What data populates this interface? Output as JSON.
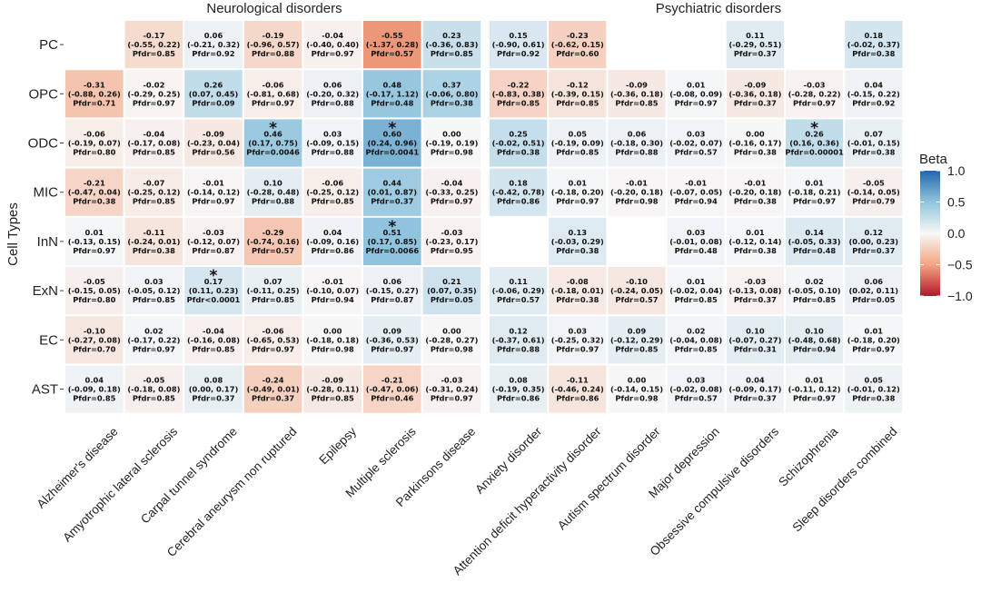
{
  "chart_data": {
    "type": "heatmap",
    "ylabel": "Cell Types",
    "rows": [
      "PC",
      "OPC",
      "ODC",
      "MIC",
      "InN",
      "ExN",
      "EC",
      "AST"
    ],
    "legend": {
      "title": "Beta",
      "ticks": [
        "1.0",
        "0.5",
        "0.0",
        "−0.5",
        "−1.0"
      ],
      "tick_values": [
        1.0,
        0.5,
        0.0,
        -0.5,
        -1.0
      ],
      "range": [
        -1.0,
        1.0
      ]
    },
    "panels": [
      {
        "title": "Neurological  disorders",
        "columns": [
          "Alzheimer's disease",
          "Amyotrophic lateral sclerosis",
          "Carpal tunnel syndrome",
          "Cerebral aneurysm non ruptured",
          "Epilepsy",
          "Multiple sclerosis",
          "Parkinsons disease"
        ],
        "cells": [
          [
            null,
            {
              "beta": -0.17,
              "b": "-0.17",
              "ci": "(-0.55, 0.22)",
              "p": "Pfdr=0.85"
            },
            {
              "beta": 0.06,
              "b": "0.06",
              "ci": "(-0.21, 0.32)",
              "p": "Pfdr=0.92"
            },
            {
              "beta": -0.19,
              "b": "-0.19",
              "ci": "(-0.96, 0.57)",
              "p": "Pfdr=0.88"
            },
            {
              "beta": -0.04,
              "b": "-0.04",
              "ci": "(-0.40, 0.40)",
              "p": "Pfdr=0.97"
            },
            {
              "beta": -0.55,
              "b": "-0.55",
              "ci": "(-1.37, 0.28)",
              "p": "Pfdr=0.57"
            },
            {
              "beta": 0.23,
              "b": "0.23",
              "ci": "(-0.36, 0.83)",
              "p": "Pfdr=0.85"
            }
          ],
          [
            {
              "beta": -0.31,
              "b": "-0.31",
              "ci": "(-0.88, 0.26)",
              "p": "Pfdr=0.71"
            },
            {
              "beta": -0.02,
              "b": "-0.02",
              "ci": "(-0.29, 0.25)",
              "p": "Pfdr=0.97"
            },
            {
              "beta": 0.26,
              "b": "0.26",
              "ci": "(0.07, 0.45)",
              "p": "Pfdr=0.09"
            },
            {
              "beta": -0.06,
              "b": "-0.06",
              "ci": "(-0.81, 0.68)",
              "p": "Pfdr=0.97"
            },
            {
              "beta": 0.06,
              "b": "0.06",
              "ci": "(-0.20, 0.32)",
              "p": "Pfdr=0.88"
            },
            {
              "beta": 0.48,
              "b": "0.48",
              "ci": "(-0.17, 1.12)",
              "p": "Pfdr=0.48"
            },
            {
              "beta": 0.37,
              "b": "0.37",
              "ci": "(-0.06, 0.80)",
              "p": "Pfdr=0.38"
            }
          ],
          [
            {
              "beta": -0.06,
              "b": "-0.06",
              "ci": "(-0.19, 0.07)",
              "p": "Pfdr=0.80"
            },
            {
              "beta": -0.04,
              "b": "-0.04",
              "ci": "(-0.17, 0.08)",
              "p": "Pfdr=0.85"
            },
            {
              "beta": -0.09,
              "b": "-0.09",
              "ci": "(-0.23, 0.04)",
              "p": "Pfdr=0.56"
            },
            {
              "beta": 0.46,
              "b": "0.46",
              "ci": "(0.17, 0.75)",
              "p": "Pfdr=0.0046",
              "sig": true
            },
            {
              "beta": 0.03,
              "b": "0.03",
              "ci": "(-0.09, 0.15)",
              "p": "Pfdr=0.88"
            },
            {
              "beta": 0.6,
              "b": "0.60",
              "ci": "(0.24, 0.96)",
              "p": "Pfdr=0.0041",
              "sig": true
            },
            {
              "beta": 0.0,
              "b": "0.00",
              "ci": "(-0.19, 0.19)",
              "p": "Pfdr=0.98"
            }
          ],
          [
            {
              "beta": -0.21,
              "b": "-0.21",
              "ci": "(-0.47, 0.04)",
              "p": "Pfdr=0.38"
            },
            {
              "beta": -0.07,
              "b": "-0.07",
              "ci": "(-0.25, 0.12)",
              "p": "Pfdr=0.85"
            },
            {
              "beta": -0.01,
              "b": "-0.01",
              "ci": "(-0.14, 0.12)",
              "p": "Pfdr=0.97"
            },
            {
              "beta": 0.1,
              "b": "0.10",
              "ci": "(-0.28, 0.48)",
              "p": "Pfdr=0.88"
            },
            {
              "beta": -0.06,
              "b": "-0.06",
              "ci": "(-0.25, 0.12)",
              "p": "Pfdr=0.85"
            },
            {
              "beta": 0.44,
              "b": "0.44",
              "ci": "(0.01, 0.87)",
              "p": "Pfdr=0.37"
            },
            {
              "beta": -0.04,
              "b": "-0.04",
              "ci": "(-0.33, 0.25)",
              "p": "Pfdr=0.97"
            }
          ],
          [
            {
              "beta": 0.01,
              "b": "0.01",
              "ci": "(-0.13, 0.15)",
              "p": "Pfdr=0.97"
            },
            {
              "beta": -0.11,
              "b": "-0.11",
              "ci": "(-0.24, 0.01)",
              "p": "Pfdr=0.38"
            },
            {
              "beta": -0.03,
              "b": "-0.03",
              "ci": "(-0.12, 0.07)",
              "p": "Pfdr=0.87"
            },
            {
              "beta": -0.29,
              "b": "-0.29",
              "ci": "(-0.74, 0.16)",
              "p": "Pfdr=0.57"
            },
            {
              "beta": 0.04,
              "b": "0.04",
              "ci": "(-0.09, 0.16)",
              "p": "Pfdr=0.86"
            },
            {
              "beta": 0.51,
              "b": "0.51",
              "ci": "(0.17, 0.85)",
              "p": "Pfdr=0.0066",
              "sig": true
            },
            {
              "beta": -0.03,
              "b": "-0.03",
              "ci": "(-0.23, 0.17)",
              "p": "Pfdr=0.95"
            }
          ],
          [
            {
              "beta": -0.05,
              "b": "-0.05",
              "ci": "(-0.15, 0.05)",
              "p": "Pfdr=0.80"
            },
            {
              "beta": 0.03,
              "b": "0.03",
              "ci": "(-0.05, 0.12)",
              "p": "Pfdr=0.85"
            },
            {
              "beta": 0.17,
              "b": "0.17",
              "ci": "(0.11, 0.23)",
              "p": "Pfdr<0.0001",
              "sig": true
            },
            {
              "beta": 0.07,
              "b": "0.07",
              "ci": "(-0.11, 0.25)",
              "p": "Pfdr=0.85"
            },
            {
              "beta": -0.01,
              "b": "-0.01",
              "ci": "(-0.10, 0.07)",
              "p": "Pfdr=0.94"
            },
            {
              "beta": 0.06,
              "b": "0.06",
              "ci": "(-0.15, 0.27)",
              "p": "Pfdr=0.87"
            },
            {
              "beta": 0.21,
              "b": "0.21",
              "ci": "(0.07, 0.35)",
              "p": "Pfdr=0.05"
            }
          ],
          [
            {
              "beta": -0.1,
              "b": "-0.10",
              "ci": "(-0.27, 0.08)",
              "p": "Pfdr=0.70"
            },
            {
              "beta": 0.02,
              "b": "0.02",
              "ci": "(-0.17, 0.22)",
              "p": "Pfdr=0.97"
            },
            {
              "beta": -0.04,
              "b": "-0.04",
              "ci": "(-0.16, 0.08)",
              "p": "Pfdr=0.85"
            },
            {
              "beta": -0.06,
              "b": "-0.06",
              "ci": "(-0.65, 0.53)",
              "p": "Pfdr=0.97"
            },
            {
              "beta": 0.0,
              "b": "0.00",
              "ci": "(-0.18, 0.18)",
              "p": "Pfdr=0.98"
            },
            {
              "beta": 0.09,
              "b": "0.09",
              "ci": "(-0.36, 0.53)",
              "p": "Pfdr=0.97"
            },
            {
              "beta": 0.0,
              "b": "0.00",
              "ci": "(-0.28, 0.27)",
              "p": "Pfdr=0.98"
            }
          ],
          [
            {
              "beta": 0.04,
              "b": "0.04",
              "ci": "(-0.09, 0.18)",
              "p": "Pfdr=0.85"
            },
            {
              "beta": -0.05,
              "b": "-0.05",
              "ci": "(-0.18, 0.08)",
              "p": "Pfdr=0.85"
            },
            {
              "beta": 0.08,
              "b": "0.08",
              "ci": "(0.00, 0.17)",
              "p": "Pfdr=0.37"
            },
            {
              "beta": -0.24,
              "b": "-0.24",
              "ci": "(-0.49, 0.01)",
              "p": "Pfdr=0.37"
            },
            {
              "beta": -0.09,
              "b": "-0.09",
              "ci": "(-0.28, 0.11)",
              "p": "Pfdr=0.85"
            },
            {
              "beta": -0.21,
              "b": "-0.21",
              "ci": "(-0.47, 0.06)",
              "p": "Pfdr=0.46"
            },
            {
              "beta": -0.03,
              "b": "-0.03",
              "ci": "(-0.31, 0.24)",
              "p": "Pfdr=0.97"
            }
          ]
        ]
      },
      {
        "title": "Psychiatric disorders",
        "columns": [
          "Anxiety disorder",
          "Attention deficit hyperactivity disorder",
          "Autism spectrum disorder",
          "Major depression",
          "Obsessive compulsive disorders",
          "Schizophrenia",
          "Sleep disorders combined"
        ],
        "cells": [
          [
            {
              "beta": 0.15,
              "b": "0.15",
              "ci": "(-0.90, 0.61)",
              "p": "Pfdr=0.92"
            },
            {
              "beta": -0.23,
              "b": "-0.23",
              "ci": "(-0.62, 0.15)",
              "p": "Pfdr=0.60"
            },
            null,
            null,
            {
              "beta": 0.11,
              "b": "0.11",
              "ci": "(-0.29, 0.51)",
              "p": "Pfdr=0.37"
            },
            null,
            {
              "beta": 0.18,
              "b": "0.18",
              "ci": "(-0.02, 0.37)",
              "p": "Pfdr=0.38"
            }
          ],
          [
            {
              "beta": -0.22,
              "b": "-0.22",
              "ci": "(-0.83, 0.38)",
              "p": "Pfdr=0.85"
            },
            {
              "beta": -0.12,
              "b": "-0.12",
              "ci": "(-0.39, 0.15)",
              "p": "Pfdr=0.85"
            },
            {
              "beta": -0.09,
              "b": "-0.09",
              "ci": "(-0.36, 0.18)",
              "p": "Pfdr=0.85"
            },
            {
              "beta": 0.01,
              "b": "0.01",
              "ci": "(-0.08, 0.09)",
              "p": "Pfdr=0.97"
            },
            {
              "beta": -0.09,
              "b": "-0.09",
              "ci": "(-0.36, 0.18)",
              "p": "Pfdr=0.37"
            },
            {
              "beta": -0.03,
              "b": "-0.03",
              "ci": "(-0.28, 0.22)",
              "p": "Pfdr=0.97"
            },
            {
              "beta": 0.04,
              "b": "0.04",
              "ci": "(-0.15, 0.22)",
              "p": "Pfdr=0.92"
            }
          ],
          [
            {
              "beta": 0.25,
              "b": "0.25",
              "ci": "(-0.02, 0.51)",
              "p": "Pfdr=0.38"
            },
            {
              "beta": 0.05,
              "b": "0.05",
              "ci": "(-0.19, 0.09)",
              "p": "Pfdr=0.85"
            },
            {
              "beta": 0.06,
              "b": "0.06",
              "ci": "(-0.18, 0.30)",
              "p": "Pfdr=0.88"
            },
            {
              "beta": 0.03,
              "b": "0.03",
              "ci": "(-0.02, 0.07)",
              "p": "Pfdr=0.57"
            },
            {
              "beta": 0.0,
              "b": "0.00",
              "ci": "(-0.16, 0.17)",
              "p": "Pfdr=0.38"
            },
            {
              "beta": 0.26,
              "b": "0.26",
              "ci": "(0.16, 0.36)",
              "p": "Pfdr=0.00001",
              "sig": true
            },
            {
              "beta": 0.07,
              "b": "0.07",
              "ci": "(-0.01, 0.15)",
              "p": "Pfdr=0.38"
            }
          ],
          [
            {
              "beta": 0.18,
              "b": "0.18",
              "ci": "(-0.42, 0.78)",
              "p": "Pfdr=0.86"
            },
            {
              "beta": 0.01,
              "b": "0.01",
              "ci": "(-0.18, 0.20)",
              "p": "Pfdr=0.97"
            },
            {
              "beta": -0.01,
              "b": "-0.01",
              "ci": "(-0.20, 0.18)",
              "p": "Pfdr=0.98"
            },
            {
              "beta": -0.01,
              "b": "-0.01",
              "ci": "(-0.07, 0.05)",
              "p": "Pfdr=0.94"
            },
            {
              "beta": -0.01,
              "b": "-0.01",
              "ci": "(-0.20, 0.18)",
              "p": "Pfdr=0.38"
            },
            {
              "beta": 0.01,
              "b": "0.01",
              "ci": "(-0.18, 0.21)",
              "p": "Pfdr=0.97"
            },
            {
              "beta": -0.05,
              "b": "-0.05",
              "ci": "(-0.14, 0.05)",
              "p": "Pfdr=0.79"
            }
          ],
          [
            null,
            {
              "beta": 0.13,
              "b": "0.13",
              "ci": "(-0.03, 0.29)",
              "p": "Pfdr=0.38"
            },
            null,
            {
              "beta": 0.03,
              "b": "0.03",
              "ci": "(-0.01, 0.08)",
              "p": "Pfdr=0.48"
            },
            {
              "beta": 0.01,
              "b": "0.01",
              "ci": "(-0.12, 0.14)",
              "p": "Pfdr=0.38"
            },
            {
              "beta": 0.14,
              "b": "0.14",
              "ci": "(-0.05, 0.33)",
              "p": "Pfdr=0.48"
            },
            {
              "beta": 0.12,
              "b": "0.12",
              "ci": "(0.00, 0.23)",
              "p": "Pfdr=0.37"
            }
          ],
          [
            {
              "beta": 0.11,
              "b": "0.11",
              "ci": "(-0.06, 0.29)",
              "p": "Pfdr=0.57"
            },
            {
              "beta": -0.08,
              "b": "-0.08",
              "ci": "(-0.18, 0.01)",
              "p": "Pfdr=0.38"
            },
            {
              "beta": -0.1,
              "b": "-0.10",
              "ci": "(-0.24, 0.05)",
              "p": "Pfdr=0.57"
            },
            {
              "beta": 0.01,
              "b": "0.01",
              "ci": "(-0.02, 0.04)",
              "p": "Pfdr=0.85"
            },
            {
              "beta": -0.03,
              "b": "-0.03",
              "ci": "(-0.13, 0.08)",
              "p": "Pfdr=0.37"
            },
            {
              "beta": 0.02,
              "b": "0.02",
              "ci": "(-0.05, 0.10)",
              "p": "Pfdr=0.85"
            },
            {
              "beta": 0.06,
              "b": "0.06",
              "ci": "(0.02, 0.11)",
              "p": "Pfdr=0.05"
            }
          ],
          [
            {
              "beta": 0.12,
              "b": "0.12",
              "ci": "(-0.37, 0.61)",
              "p": "Pfdr=0.88"
            },
            {
              "beta": 0.03,
              "b": "0.03",
              "ci": "(-0.25, 0.32)",
              "p": "Pfdr=0.97"
            },
            {
              "beta": 0.09,
              "b": "0.09",
              "ci": "(-0.12, 0.29)",
              "p": "Pfdr=0.85"
            },
            {
              "beta": 0.02,
              "b": "0.02",
              "ci": "(-0.04, 0.08)",
              "p": "Pfdr=0.85"
            },
            {
              "beta": 0.1,
              "b": "0.10",
              "ci": "(-0.07, 0.27)",
              "p": "Pfdr=0.31"
            },
            {
              "beta": 0.1,
              "b": "0.10",
              "ci": "(-0.48, 0.68)",
              "p": "Pfdr=0.94"
            },
            {
              "beta": 0.01,
              "b": "0.01",
              "ci": "(-0.18, 0.20)",
              "p": "Pfdr=0.97"
            }
          ],
          [
            {
              "beta": 0.08,
              "b": "0.08",
              "ci": "(-0.19, 0.35)",
              "p": "Pfdr=0.86"
            },
            {
              "beta": -0.11,
              "b": "-0.11",
              "ci": "(-0.46, 0.24)",
              "p": "Pfdr=0.86"
            },
            {
              "beta": 0.0,
              "b": "0.00",
              "ci": "(-0.14, 0.15)",
              "p": "Pfdr=0.98"
            },
            {
              "beta": 0.03,
              "b": "0.03",
              "ci": "(-0.02, 0.08)",
              "p": "Pfdr=0.57"
            },
            {
              "beta": 0.04,
              "b": "0.04",
              "ci": "(-0.09, 0.17)",
              "p": "Pfdr=0.37"
            },
            {
              "beta": 0.01,
              "b": "0.01",
              "ci": "(-0.11, 0.12)",
              "p": "Pfdr=0.97"
            },
            {
              "beta": 0.05,
              "b": "0.05",
              "ci": "(-0.01, 0.12)",
              "p": "Pfdr=0.38"
            }
          ]
        ]
      }
    ]
  }
}
